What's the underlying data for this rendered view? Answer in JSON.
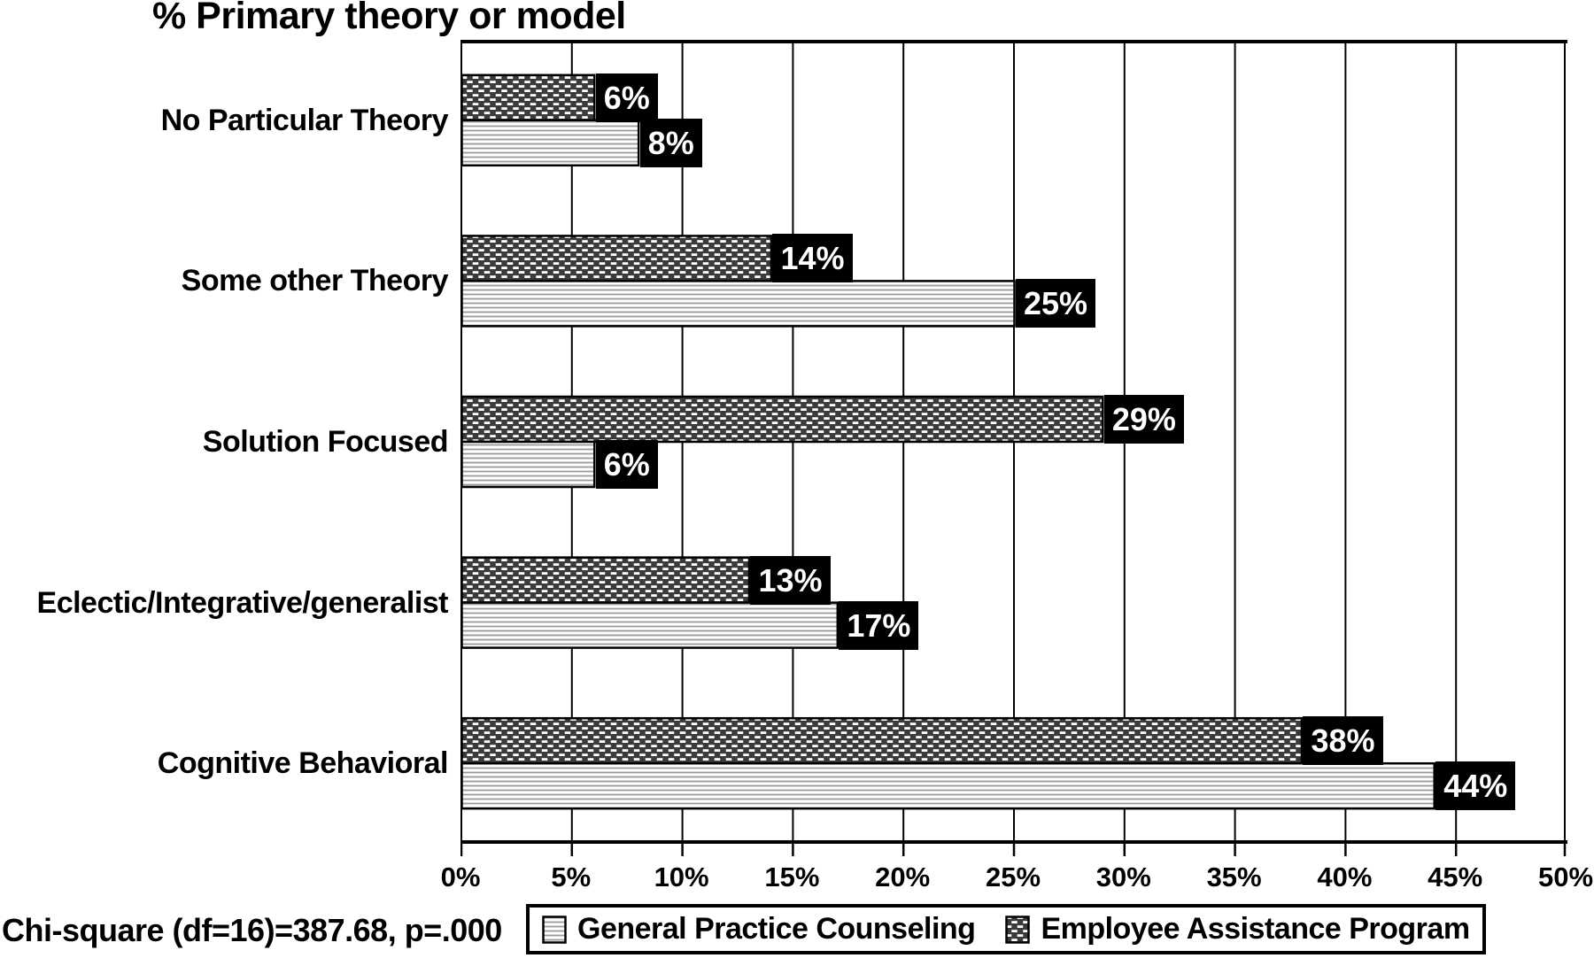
{
  "title": "% Primary theory or model",
  "note": "Chi-square (df=16)=387.68, p=.000",
  "legend": {
    "items": [
      {
        "label": "General Practice Counseling",
        "pattern": "h-lines"
      },
      {
        "label": "Employee Assistance Program",
        "pattern": "dots"
      }
    ]
  },
  "colors": {
    "bar_dark": "#3b3b3b",
    "bar_line_gray": "#9b9b9b",
    "value_label_bg": "#000000",
    "value_label_fg": "#ffffff",
    "axis_black": "#000000"
  },
  "chart_data": {
    "type": "bar",
    "orientation": "horizontal",
    "title": "% Primary theory or model",
    "categories": [
      "No Particular Theory",
      "Some other Theory",
      "Solution Focused",
      "Eclectic/Integrative/generalist",
      "Cognitive Behavioral"
    ],
    "series": [
      {
        "name": "Employee Assistance Program",
        "pattern": "dots",
        "position_in_group": "top",
        "values": [
          6,
          14,
          29,
          13,
          38
        ],
        "labels": [
          "6%",
          "14%",
          "29%",
          "13%",
          "38%"
        ]
      },
      {
        "name": "General Practice Counseling",
        "pattern": "h-lines",
        "position_in_group": "bottom",
        "values": [
          8,
          25,
          6,
          17,
          44
        ],
        "labels": [
          "8%",
          "25%",
          "6%",
          "17%",
          "44%"
        ]
      }
    ],
    "xlim": [
      0,
      50
    ],
    "x_ticks": [
      "0%",
      "5%",
      "10%",
      "15%",
      "20%",
      "25%",
      "30%",
      "35%",
      "40%",
      "45%",
      "50%"
    ],
    "grid": "vertical-gridlines-every-5pct",
    "legend_position": "bottom",
    "annotation": "Chi-square (df=16)=387.68, p=.000"
  }
}
